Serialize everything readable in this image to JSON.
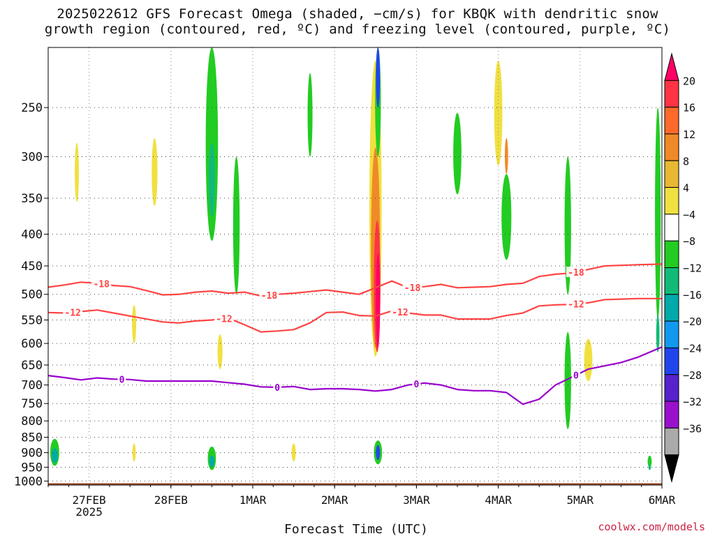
{
  "header": {
    "title_line1": "2025022612 GFS Forecast Omega (shaded, −cm/s) for KBQK with dendritic snow",
    "title_line2": "growth region (contoured, red, ºC) and freezing level (contoured, purple, ºC)"
  },
  "footer": {
    "xlabel": "Forecast Time (UTC)",
    "credit": "coolwx.com/models"
  },
  "colors": {
    "ground": "#a0522d",
    "dgz": "#ff4444",
    "freezing": "#9900cc",
    "grid": "#555555"
  },
  "chart_data": {
    "type": "heatmap",
    "title": "2025022612 GFS Forecast Omega (shaded, −cm/s) for KBQK with dendritic snow growth region (contoured, red, ºC) and freezing level (contoured, purple, ºC)",
    "xlabel": "Forecast Time (UTC)",
    "ylabel": "",
    "y_scale": "log-pressure",
    "ylim": [
      1015,
      200
    ],
    "xlim": [
      "2025-02-26 12Z",
      "2025-03-06 00Z"
    ],
    "y_ticks": [
      250,
      300,
      350,
      400,
      450,
      500,
      550,
      600,
      650,
      700,
      750,
      800,
      850,
      900,
      950,
      1000
    ],
    "x_ticks": [
      {
        "t": 0.5,
        "label": "27FEB",
        "sub": "2025"
      },
      {
        "t": 1.5,
        "label": "28FEB",
        "sub": ""
      },
      {
        "t": 2.5,
        "label": "1MAR",
        "sub": ""
      },
      {
        "t": 3.5,
        "label": "2MAR",
        "sub": ""
      },
      {
        "t": 4.5,
        "label": "3MAR",
        "sub": ""
      },
      {
        "t": 5.5,
        "label": "4MAR",
        "sub": ""
      },
      {
        "t": 6.5,
        "label": "5MAR",
        "sub": ""
      },
      {
        "t": 7.5,
        "label": "6MAR",
        "sub": ""
      }
    ],
    "t_range": [
      0,
      7.5
    ],
    "colorbar": {
      "labels": [
        "20",
        "16",
        "12",
        "8",
        "4",
        "−4",
        "−8",
        "−12",
        "−16",
        "−20",
        "−24",
        "−28",
        "−32",
        "−36"
      ],
      "colors": [
        "#ff0066",
        "#ff3344",
        "#ff6a2a",
        "#f08a28",
        "#e8b832",
        "#f0e040",
        "#ffffff",
        "#22cc22",
        "#11bb77",
        "#00aaaa",
        "#1199ee",
        "#2244ee",
        "#5522cc",
        "#9911cc",
        "#aaaaaa",
        "#000000"
      ]
    },
    "shading": [
      {
        "t": 0.08,
        "p": 900,
        "dt": 0.11,
        "dp": 90,
        "color": "#22cc22"
      },
      {
        "t": 0.08,
        "p": 910,
        "dt": 0.07,
        "dp": 50,
        "color": "#00aaaa"
      },
      {
        "t": 0.35,
        "p": 320,
        "dt": 0.05,
        "dp": 70,
        "color": "#f0e040"
      },
      {
        "t": 1.3,
        "p": 320,
        "dt": 0.07,
        "dp": 80,
        "color": "#f0e040"
      },
      {
        "t": 1.05,
        "p": 900,
        "dt": 0.04,
        "dp": 60,
        "color": "#f0e040"
      },
      {
        "t": 1.05,
        "p": 560,
        "dt": 0.05,
        "dp": 80,
        "color": "#f0e040"
      },
      {
        "t": 2.0,
        "p": 300,
        "dt": 0.15,
        "dp": 220,
        "color": "#22cc22"
      },
      {
        "t": 2.0,
        "p": 330,
        "dt": 0.08,
        "dp": 90,
        "color": "#11bb77"
      },
      {
        "t": 2.0,
        "p": 920,
        "dt": 0.1,
        "dp": 80,
        "color": "#22cc22"
      },
      {
        "t": 2.0,
        "p": 930,
        "dt": 0.06,
        "dp": 40,
        "color": "#00aaaa"
      },
      {
        "t": 2.3,
        "p": 400,
        "dt": 0.08,
        "dp": 200,
        "color": "#22cc22"
      },
      {
        "t": 2.1,
        "p": 620,
        "dt": 0.06,
        "dp": 80,
        "color": "#f0e040"
      },
      {
        "t": 3.0,
        "p": 900,
        "dt": 0.05,
        "dp": 60,
        "color": "#f0e040"
      },
      {
        "t": 3.2,
        "p": 260,
        "dt": 0.06,
        "dp": 80,
        "color": "#22cc22"
      },
      {
        "t": 4.0,
        "p": 420,
        "dt": 0.15,
        "dp": 420,
        "color": "#f0e040"
      },
      {
        "t": 4.0,
        "p": 450,
        "dt": 0.11,
        "dp": 320,
        "color": "#f08a28"
      },
      {
        "t": 4.02,
        "p": 500,
        "dt": 0.08,
        "dp": 240,
        "color": "#ff3344"
      },
      {
        "t": 4.03,
        "p": 520,
        "dt": 0.05,
        "dp": 180,
        "color": "#ff0066"
      },
      {
        "t": 4.03,
        "p": 250,
        "dt": 0.07,
        "dp": 100,
        "color": "#22cc22"
      },
      {
        "t": 4.03,
        "p": 225,
        "dt": 0.05,
        "dp": 50,
        "color": "#2244ee"
      },
      {
        "t": 4.03,
        "p": 900,
        "dt": 0.1,
        "dp": 80,
        "color": "#22cc22"
      },
      {
        "t": 4.03,
        "p": 900,
        "dt": 0.05,
        "dp": 50,
        "color": "#2244ee"
      },
      {
        "t": 5.0,
        "p": 300,
        "dt": 0.1,
        "dp": 90,
        "color": "#22cc22"
      },
      {
        "t": 5.6,
        "p": 380,
        "dt": 0.12,
        "dp": 120,
        "color": "#22cc22"
      },
      {
        "t": 5.5,
        "p": 260,
        "dt": 0.1,
        "dp": 100,
        "color": "#f0e040"
      },
      {
        "t": 5.6,
        "p": 300,
        "dt": 0.04,
        "dp": 40,
        "color": "#f08a28"
      },
      {
        "t": 6.35,
        "p": 400,
        "dt": 0.08,
        "dp": 200,
        "color": "#22cc22"
      },
      {
        "t": 6.35,
        "p": 700,
        "dt": 0.08,
        "dp": 250,
        "color": "#22cc22"
      },
      {
        "t": 6.6,
        "p": 640,
        "dt": 0.1,
        "dp": 100,
        "color": "#f0e040"
      },
      {
        "t": 7.35,
        "p": 930,
        "dt": 0.05,
        "dp": 40,
        "color": "#22cc22"
      },
      {
        "t": 7.35,
        "p": 950,
        "dt": 0.03,
        "dp": 20,
        "color": "#11bb77"
      },
      {
        "t": 7.45,
        "p": 400,
        "dt": 0.07,
        "dp": 300,
        "color": "#22cc22"
      },
      {
        "t": 7.45,
        "p": 580,
        "dt": 0.04,
        "dp": 80,
        "color": "#11bb77"
      }
    ],
    "series": [
      {
        "name": "-18",
        "color": "#ff4444",
        "label_at": [
          0.65,
          2.7,
          4.45,
          6.45
        ],
        "x": [
          0,
          0.2,
          0.4,
          0.6,
          0.8,
          1.0,
          1.2,
          1.4,
          1.6,
          1.8,
          2.0,
          2.2,
          2.4,
          2.6,
          2.8,
          3.0,
          3.2,
          3.4,
          3.6,
          3.8,
          4.0,
          4.2,
          4.4,
          4.6,
          4.8,
          5.0,
          5.2,
          5.4,
          5.6,
          5.8,
          6.0,
          6.2,
          6.4,
          6.6,
          6.8,
          7.0,
          7.2,
          7.5
        ],
        "values": [
          487,
          483,
          478,
          480,
          484,
          486,
          493,
          501,
          500,
          496,
          494,
          498,
          496,
          503,
          500,
          498,
          495,
          492,
          496,
          500,
          488,
          476,
          488,
          486,
          482,
          488,
          487,
          486,
          482,
          480,
          468,
          464,
          462,
          456,
          450,
          449,
          448,
          447
        ]
      },
      {
        "name": "-12",
        "color": "#ff4444",
        "label_at": [
          0.3,
          2.15,
          4.3,
          6.45
        ],
        "x": [
          0,
          0.2,
          0.4,
          0.6,
          0.8,
          1.0,
          1.2,
          1.4,
          1.6,
          1.8,
          2.0,
          2.2,
          2.4,
          2.6,
          2.8,
          3.0,
          3.2,
          3.4,
          3.6,
          3.8,
          4.0,
          4.2,
          4.4,
          4.6,
          4.8,
          5.0,
          5.2,
          5.4,
          5.6,
          5.8,
          6.0,
          6.2,
          6.4,
          6.6,
          6.8,
          7.0,
          7.2,
          7.5
        ],
        "values": [
          535,
          536,
          533,
          530,
          536,
          542,
          548,
          554,
          556,
          552,
          550,
          546,
          560,
          575,
          573,
          570,
          556,
          535,
          534,
          541,
          542,
          532,
          536,
          540,
          540,
          548,
          548,
          548,
          541,
          536,
          522,
          520,
          519,
          516,
          510,
          509,
          508,
          508
        ]
      },
      {
        "name": "0",
        "color": "#9900cc",
        "label_at": [
          0.9,
          2.8,
          4.5,
          6.45
        ],
        "x": [
          0,
          0.2,
          0.4,
          0.6,
          0.8,
          1.0,
          1.2,
          1.4,
          1.6,
          1.8,
          2.0,
          2.2,
          2.4,
          2.6,
          2.8,
          3.0,
          3.2,
          3.4,
          3.6,
          3.8,
          4.0,
          4.2,
          4.4,
          4.6,
          4.8,
          5.0,
          5.2,
          5.4,
          5.6,
          5.8,
          6.0,
          6.2,
          6.4,
          6.6,
          6.8,
          7.0,
          7.2,
          7.5
        ],
        "values": [
          676,
          681,
          687,
          682,
          685,
          686,
          690,
          690,
          690,
          690,
          690,
          694,
          698,
          705,
          706,
          704,
          712,
          710,
          710,
          712,
          716,
          712,
          700,
          695,
          700,
          712,
          715,
          715,
          720,
          752,
          738,
          700,
          680,
          660,
          652,
          644,
          632,
          608
        ]
      }
    ]
  }
}
